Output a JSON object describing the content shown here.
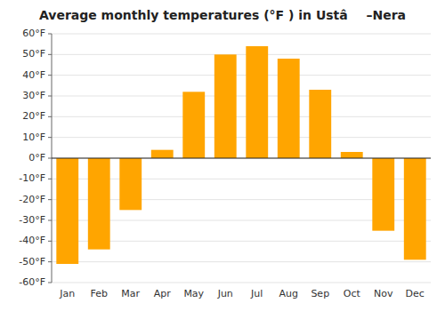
{
  "chart_data": {
    "type": "bar",
    "title": "Average monthly temperatures (°F ) in Ustâ  –Nera",
    "categories": [
      "Jan",
      "Feb",
      "Mar",
      "Apr",
      "May",
      "Jun",
      "Jul",
      "Aug",
      "Sep",
      "Oct",
      "Nov",
      "Dec"
    ],
    "values": [
      -51,
      -44,
      -25,
      4,
      32,
      50,
      54,
      48,
      33,
      3,
      -35,
      -49
    ],
    "color": "#FFA500",
    "ylim": [
      -60,
      60
    ],
    "yticks": [
      {
        "value": -60,
        "label": "-60°F"
      },
      {
        "value": -50,
        "label": "-50°F"
      },
      {
        "value": -40,
        "label": "-40°F"
      },
      {
        "value": -30,
        "label": "-30°F"
      },
      {
        "value": -20,
        "label": "-20°F"
      },
      {
        "value": -10,
        "label": "-10°F"
      },
      {
        "value": 0,
        "label": "0°F"
      },
      {
        "value": 10,
        "label": "10°F"
      },
      {
        "value": 20,
        "label": "20°F"
      },
      {
        "value": 30,
        "label": "30°F"
      },
      {
        "value": 40,
        "label": "40°F"
      },
      {
        "value": 50,
        "label": "50°F"
      },
      {
        "value": 60,
        "label": "60°F"
      }
    ],
    "grid": true
  }
}
